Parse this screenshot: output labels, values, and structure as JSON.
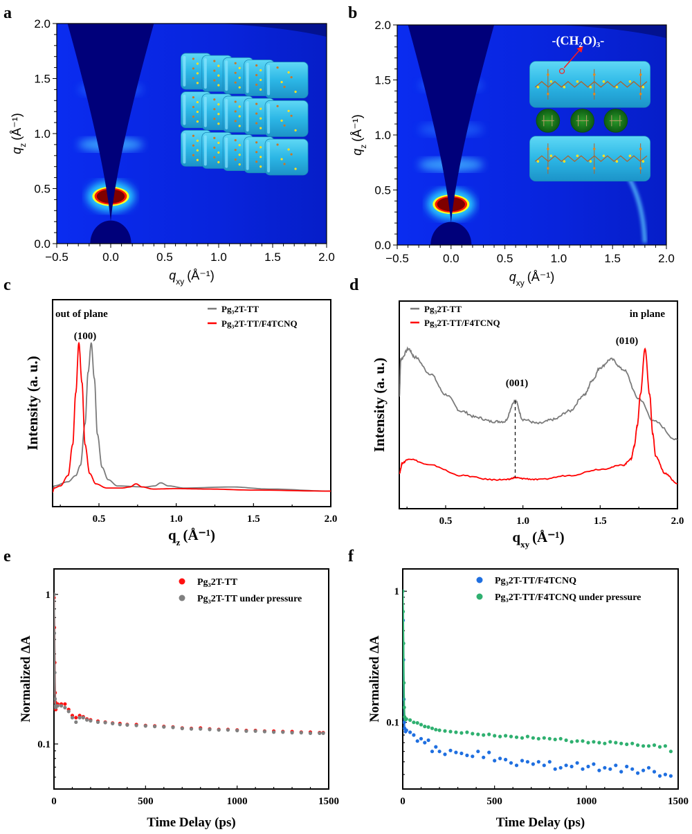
{
  "panel_labels": [
    "a",
    "b",
    "c",
    "d",
    "e",
    "f"
  ],
  "chart_data": [
    {
      "panel": "a",
      "type": "heatmap",
      "xlabel": {
        "symbol": "q",
        "subscript": "xy",
        "unit": "(Å⁻¹)"
      },
      "ylabel": {
        "symbol": "q",
        "subscript": "z",
        "unit": "(Å⁻¹)"
      },
      "xlim": [
        -0.5,
        2.0
      ],
      "ylim": [
        0.0,
        2.0
      ],
      "xticks": [
        "−0.5",
        "0.0",
        "0.5",
        "1.0",
        "1.5",
        "2.0"
      ],
      "yticks": [
        "0.0",
        "0.5",
        "1.0",
        "1.5",
        "2.0"
      ],
      "colormap": [
        "#00007a",
        "#0a2ae8",
        "#29c8ff",
        "#ffff00",
        "#ff0000",
        "#7f0000"
      ],
      "features": {
        "peak_100_qz": 0.43,
        "secondary_arcs_qz": [
          0.9,
          1.4
        ]
      },
      "inset": "edge-on lamellar stacking schematic (3 x 5 blocks)"
    },
    {
      "panel": "b",
      "type": "heatmap",
      "xlabel": {
        "symbol": "q",
        "subscript": "xy",
        "unit": "(Å⁻¹)"
      },
      "ylabel": {
        "symbol": "q",
        "subscript": "z",
        "unit": "(Å⁻¹)"
      },
      "xlim": [
        -0.5,
        2.0
      ],
      "ylim": [
        0.0,
        2.0
      ],
      "xticks": [
        "−0.5",
        "0.0",
        "0.5",
        "1.0",
        "1.5",
        "2.0"
      ],
      "yticks": [
        "0.0",
        "0.5",
        "1.0",
        "1.5",
        "2.0"
      ],
      "features": {
        "peak_100_qz": 0.37,
        "secondary_arcs_qz": [
          0.73,
          1.05,
          1.45
        ],
        "pi_stack_arc_qxy": 1.8
      },
      "inset_annotation": "-(CH₂O)₃-"
    },
    {
      "panel": "c",
      "type": "line",
      "xlabel": {
        "symbol": "q",
        "subscript": "z",
        "unit": "(Å⁻¹)"
      },
      "ylabel": "Intensity (a. u.)",
      "xlim": [
        0.2,
        2.0
      ],
      "ylim": [
        0,
        1
      ],
      "xticks": [
        "0.5",
        "1.0",
        "1.5",
        "2.0"
      ],
      "annotations": {
        "geometry": "out of plane",
        "peak": "(100)"
      },
      "legend_position": "top-right",
      "series": [
        {
          "name": "Pg₃2T-TT",
          "color": "#7a7a7a",
          "x": [
            0.2,
            0.21,
            0.3,
            0.35,
            0.38,
            0.41,
            0.43,
            0.45,
            0.47,
            0.49,
            0.52,
            0.56,
            0.62,
            0.8,
            0.86,
            0.9,
            0.95,
            1.05,
            1.36,
            1.6,
            2.0
          ],
          "y": [
            0.07,
            0.1,
            0.12,
            0.15,
            0.2,
            0.4,
            0.65,
            0.79,
            0.62,
            0.35,
            0.19,
            0.13,
            0.1,
            0.095,
            0.1,
            0.115,
            0.1,
            0.09,
            0.095,
            0.085,
            0.075
          ]
        },
        {
          "name": "Pg₃2T-TT/F4TCNQ",
          "color": "#ff0000",
          "x": [
            0.2,
            0.21,
            0.25,
            0.3,
            0.33,
            0.35,
            0.37,
            0.39,
            0.41,
            0.44,
            0.48,
            0.55,
            0.65,
            0.7,
            0.74,
            0.78,
            0.85,
            1.0,
            1.2,
            1.5,
            2.0
          ],
          "y": [
            0.07,
            0.09,
            0.1,
            0.15,
            0.3,
            0.55,
            0.79,
            0.6,
            0.3,
            0.16,
            0.11,
            0.09,
            0.09,
            0.095,
            0.11,
            0.095,
            0.085,
            0.087,
            0.085,
            0.08,
            0.075
          ]
        }
      ]
    },
    {
      "panel": "d",
      "type": "line",
      "xlabel": {
        "symbol": "q",
        "subscript": "xy",
        "unit": "(Å⁻¹)"
      },
      "ylabel": "Intensity (a. u.)",
      "xlim": [
        0.2,
        2.0
      ],
      "ylim": [
        0,
        1
      ],
      "xticks": [
        "0.5",
        "1.0",
        "1.5",
        "2.0"
      ],
      "annotations": {
        "geometry": "in plane",
        "peak_001": "(001)",
        "peak_010": "(010)",
        "peak_001_q": 0.95
      },
      "legend_position": "top-left",
      "series": [
        {
          "name": "Pg₃2T-TT",
          "color": "#7a7a7a",
          "x": [
            0.2,
            0.21,
            0.26,
            0.3,
            0.4,
            0.5,
            0.6,
            0.7,
            0.8,
            0.88,
            0.95,
            1.0,
            1.1,
            1.2,
            1.3,
            1.4,
            1.45,
            1.5,
            1.57,
            1.65,
            1.75,
            1.85,
            2.0
          ],
          "y": [
            0.54,
            0.72,
            0.77,
            0.73,
            0.65,
            0.55,
            0.47,
            0.44,
            0.42,
            0.42,
            0.52,
            0.43,
            0.41,
            0.43,
            0.47,
            0.55,
            0.62,
            0.68,
            0.72,
            0.67,
            0.53,
            0.42,
            0.33
          ]
        },
        {
          "name": "Pg₃2T-TT/F4TCNQ",
          "color": "#ff0000",
          "x": [
            0.2,
            0.22,
            0.26,
            0.4,
            0.6,
            0.8,
            0.9,
            0.95,
            1.0,
            1.1,
            1.3,
            1.5,
            1.65,
            1.7,
            1.72,
            1.74,
            1.76,
            1.79,
            1.82,
            1.84,
            1.86,
            1.92,
            2.0
          ],
          "y": [
            0.17,
            0.22,
            0.24,
            0.21,
            0.16,
            0.14,
            0.14,
            0.15,
            0.145,
            0.14,
            0.16,
            0.19,
            0.21,
            0.24,
            0.3,
            0.4,
            0.55,
            0.77,
            0.55,
            0.36,
            0.25,
            0.17,
            0.12
          ]
        }
      ]
    },
    {
      "panel": "e",
      "type": "scatter",
      "xlabel": "Time Delay (ps)",
      "ylabel": "Normalized ΔA",
      "xlim": [
        0,
        1500
      ],
      "ylim": [
        0.05,
        1.48
      ],
      "yscale": "log",
      "xticks": [
        "0",
        "500",
        "1000",
        "1500"
      ],
      "yticks": [
        "1",
        "0.1"
      ],
      "legend_position": "top-right",
      "series": [
        {
          "name": "Pg₃2T-TT",
          "color": "#ff1010",
          "x": [
            0,
            2,
            4,
            6,
            8,
            10,
            20,
            40,
            60,
            80,
            100,
            120,
            140,
            160,
            180,
            200,
            240,
            280,
            320,
            360,
            400,
            450,
            500,
            550,
            600,
            650,
            700,
            750,
            800,
            850,
            900,
            950,
            1000,
            1050,
            1100,
            1150,
            1200,
            1250,
            1300,
            1350,
            1400,
            1450,
            1470
          ],
          "y": [
            0.95,
            0.6,
            0.35,
            0.22,
            0.19,
            0.17,
            0.185,
            0.185,
            0.185,
            0.17,
            0.155,
            0.15,
            0.155,
            0.152,
            0.147,
            0.145,
            0.142,
            0.14,
            0.138,
            0.137,
            0.135,
            0.135,
            0.133,
            0.132,
            0.131,
            0.13,
            0.128,
            0.127,
            0.128,
            0.126,
            0.125,
            0.125,
            0.124,
            0.123,
            0.123,
            0.122,
            0.122,
            0.121,
            0.121,
            0.12,
            0.12,
            0.119,
            0.119
          ]
        },
        {
          "name": "Pg₃2T-TT under pressure",
          "color": "#808080",
          "x": [
            0,
            2,
            4,
            6,
            8,
            10,
            20,
            40,
            60,
            80,
            100,
            120,
            140,
            160,
            180,
            200,
            240,
            280,
            320,
            360,
            400,
            450,
            500,
            550,
            600,
            650,
            700,
            750,
            800,
            850,
            900,
            950,
            1000,
            1050,
            1100,
            1150,
            1200,
            1250,
            1300,
            1350,
            1400,
            1450,
            1470
          ],
          "y": [
            1.0,
            0.55,
            0.3,
            0.2,
            0.18,
            0.175,
            0.18,
            0.18,
            0.175,
            0.165,
            0.15,
            0.14,
            0.15,
            0.15,
            0.145,
            0.143,
            0.14,
            0.139,
            0.137,
            0.135,
            0.134,
            0.133,
            0.132,
            0.131,
            0.13,
            0.129,
            0.127,
            0.126,
            0.126,
            0.125,
            0.124,
            0.124,
            0.123,
            0.122,
            0.122,
            0.121,
            0.12,
            0.12,
            0.119,
            0.119,
            0.118,
            0.118,
            0.118
          ]
        }
      ]
    },
    {
      "panel": "f",
      "type": "scatter",
      "xlabel": "Time Delay (ps)",
      "ylabel": "Normalized ΔA",
      "xlim": [
        0,
        1500
      ],
      "ylim": [
        0.031,
        1.48
      ],
      "yscale": "log",
      "xticks": [
        "0",
        "500",
        "1000",
        "1500"
      ],
      "yticks": [
        "1",
        "0.1"
      ],
      "legend_position": "top-right",
      "series": [
        {
          "name": "Pg₃2T-TT/F4TCNQ",
          "color": "#1f6fe0",
          "x": [
            0,
            2,
            4,
            6,
            8,
            10,
            15,
            20,
            40,
            60,
            80,
            100,
            120,
            140,
            160,
            180,
            200,
            230,
            260,
            290,
            320,
            350,
            380,
            410,
            440,
            470,
            500,
            530,
            560,
            590,
            620,
            650,
            680,
            710,
            740,
            770,
            800,
            830,
            860,
            890,
            920,
            950,
            980,
            1010,
            1040,
            1070,
            1100,
            1130,
            1160,
            1190,
            1220,
            1250,
            1280,
            1310,
            1340,
            1370,
            1400,
            1430,
            1460
          ],
          "y": [
            1.0,
            0.6,
            0.3,
            0.15,
            0.1,
            0.09,
            0.085,
            0.087,
            0.084,
            0.08,
            0.072,
            0.075,
            0.07,
            0.073,
            0.06,
            0.065,
            0.06,
            0.057,
            0.061,
            0.059,
            0.058,
            0.056,
            0.055,
            0.06,
            0.054,
            0.059,
            0.051,
            0.053,
            0.052,
            0.049,
            0.047,
            0.051,
            0.05,
            0.048,
            0.05,
            0.047,
            0.05,
            0.044,
            0.045,
            0.047,
            0.046,
            0.049,
            0.044,
            0.046,
            0.048,
            0.043,
            0.045,
            0.044,
            0.047,
            0.042,
            0.046,
            0.044,
            0.041,
            0.043,
            0.045,
            0.042,
            0.039,
            0.04,
            0.039
          ]
        },
        {
          "name": "Pg₃2T-TT/F4TCNQ under pressure",
          "color": "#2fb070",
          "x": [
            0,
            2,
            4,
            6,
            8,
            10,
            15,
            20,
            40,
            60,
            80,
            100,
            120,
            140,
            160,
            180,
            200,
            230,
            260,
            290,
            320,
            350,
            380,
            410,
            440,
            470,
            500,
            530,
            560,
            590,
            620,
            650,
            680,
            710,
            740,
            770,
            800,
            830,
            860,
            890,
            920,
            950,
            980,
            1010,
            1040,
            1070,
            1100,
            1130,
            1160,
            1190,
            1220,
            1250,
            1280,
            1310,
            1340,
            1370,
            1400,
            1430,
            1460
          ],
          "y": [
            1.0,
            0.7,
            0.4,
            0.2,
            0.13,
            0.11,
            0.105,
            0.106,
            0.104,
            0.1,
            0.099,
            0.096,
            0.093,
            0.092,
            0.09,
            0.088,
            0.087,
            0.086,
            0.085,
            0.084,
            0.083,
            0.084,
            0.082,
            0.081,
            0.08,
            0.081,
            0.079,
            0.078,
            0.079,
            0.078,
            0.077,
            0.076,
            0.078,
            0.076,
            0.075,
            0.076,
            0.075,
            0.074,
            0.075,
            0.073,
            0.071,
            0.072,
            0.072,
            0.07,
            0.071,
            0.07,
            0.069,
            0.071,
            0.07,
            0.069,
            0.068,
            0.069,
            0.067,
            0.066,
            0.066,
            0.067,
            0.065,
            0.066,
            0.06
          ]
        }
      ]
    }
  ]
}
